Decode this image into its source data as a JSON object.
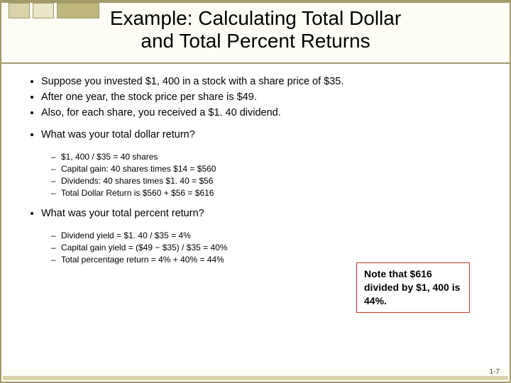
{
  "title_line1": "Example: Calculating Total Dollar",
  "title_line2": "and Total Percent Returns",
  "setup_bullets": [
    "Suppose you invested $1, 400 in a stock with a share price of $35.",
    "After one year, the stock price per share is $49.",
    "Also, for each share, you received a $1. 40 dividend."
  ],
  "question1": "What was your total dollar return?",
  "answer1": [
    "$1, 400 / $35 = 40 shares",
    "Capital gain: 40 shares times $14 = $560",
    "Dividends: 40 shares times $1. 40 = $56",
    "Total Dollar Return is $560 + $56 = $616"
  ],
  "question2": "What was your total percent return?",
  "answer2": [
    "Dividend yield = $1. 40 / $35 = 4%",
    "Capital gain yield = ($49 − $35) / $35 = 40%",
    "Total percentage return = 4% + 40% = 44%"
  ],
  "note_text": "Note that $616 divided by $1, 400 is 44%.",
  "page_number": "1-7",
  "colors": {
    "frame_border": "#a39a6a",
    "frame_bg": "#fdfdf5",
    "note_border": "#c0392b",
    "deco_a": "#d8d3a9",
    "deco_b": "#e8e5c8",
    "deco_c": "#bdb67d"
  }
}
